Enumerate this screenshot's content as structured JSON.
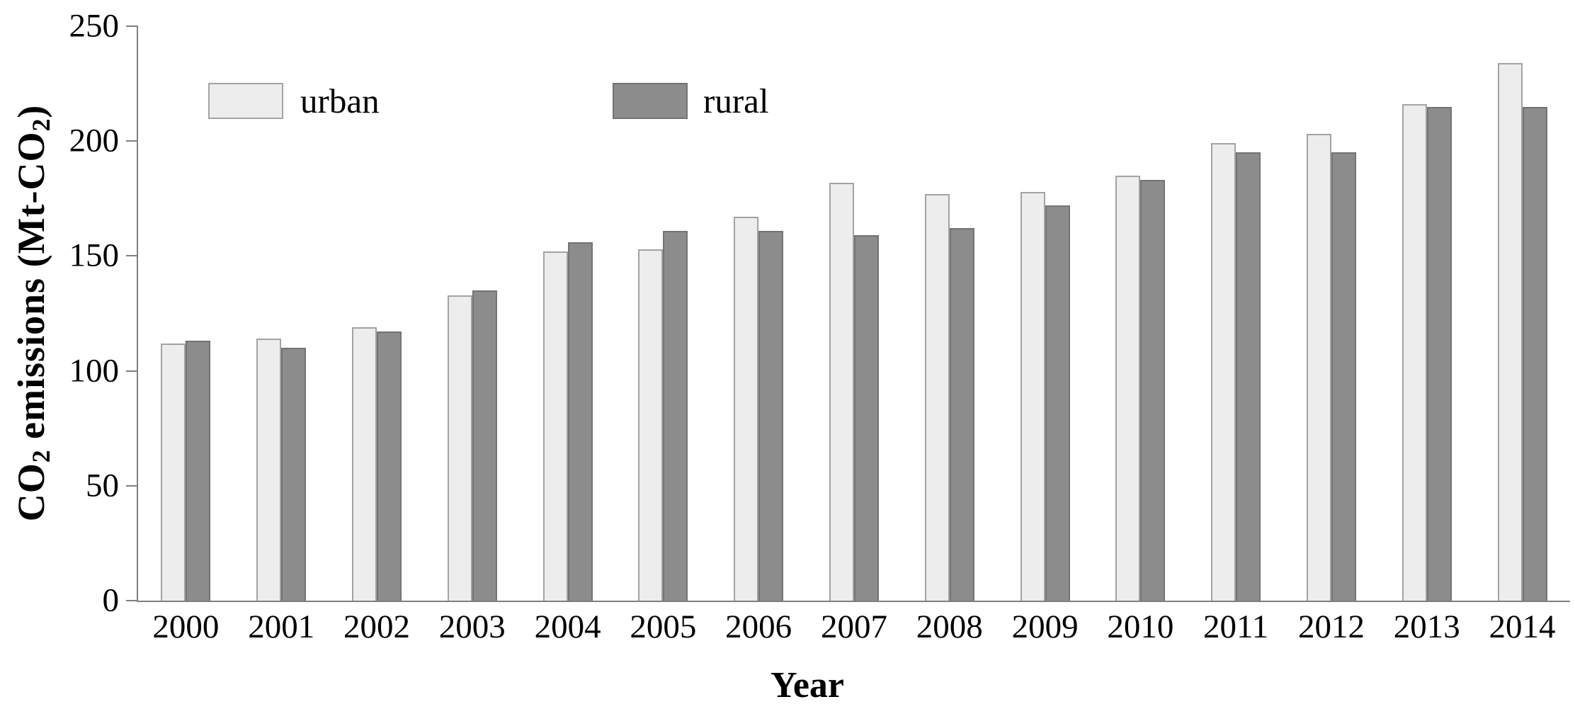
{
  "chart_data": {
    "type": "bar",
    "title": "",
    "xlabel": "Year",
    "ylabel": "CO2 emissions (Mt-CO2)",
    "categories": [
      "2000",
      "2001",
      "2002",
      "2003",
      "2004",
      "2005",
      "2006",
      "2007",
      "2008",
      "2009",
      "2010",
      "2011",
      "2012",
      "2013",
      "2014"
    ],
    "series": [
      {
        "name": "urban",
        "color": "#ededed",
        "border_color": "#a3a3a3",
        "values": [
          112,
          114,
          119,
          133,
          152,
          153,
          167,
          182,
          177,
          178,
          185,
          199,
          203,
          216,
          234
        ]
      },
      {
        "name": "rural",
        "color": "#8c8c8c",
        "border_color": "#737373",
        "values": [
          113,
          110,
          117,
          135,
          156,
          161,
          161,
          159,
          162,
          172,
          183,
          195,
          195,
          215,
          215
        ]
      }
    ],
    "ylim": [
      0,
      250
    ],
    "yticks": [
      0,
      50,
      100,
      150,
      200,
      250
    ],
    "grid": "off",
    "legend_position": "top-left-inside",
    "axis_color": "#7f7f7f"
  },
  "axes": {
    "x_title": "Year",
    "y_title_parts": [
      "CO",
      "2",
      " emissions (Mt-CO",
      "2",
      ")"
    ]
  },
  "legend": {
    "urban_label": "urban",
    "rural_label": "rural"
  }
}
